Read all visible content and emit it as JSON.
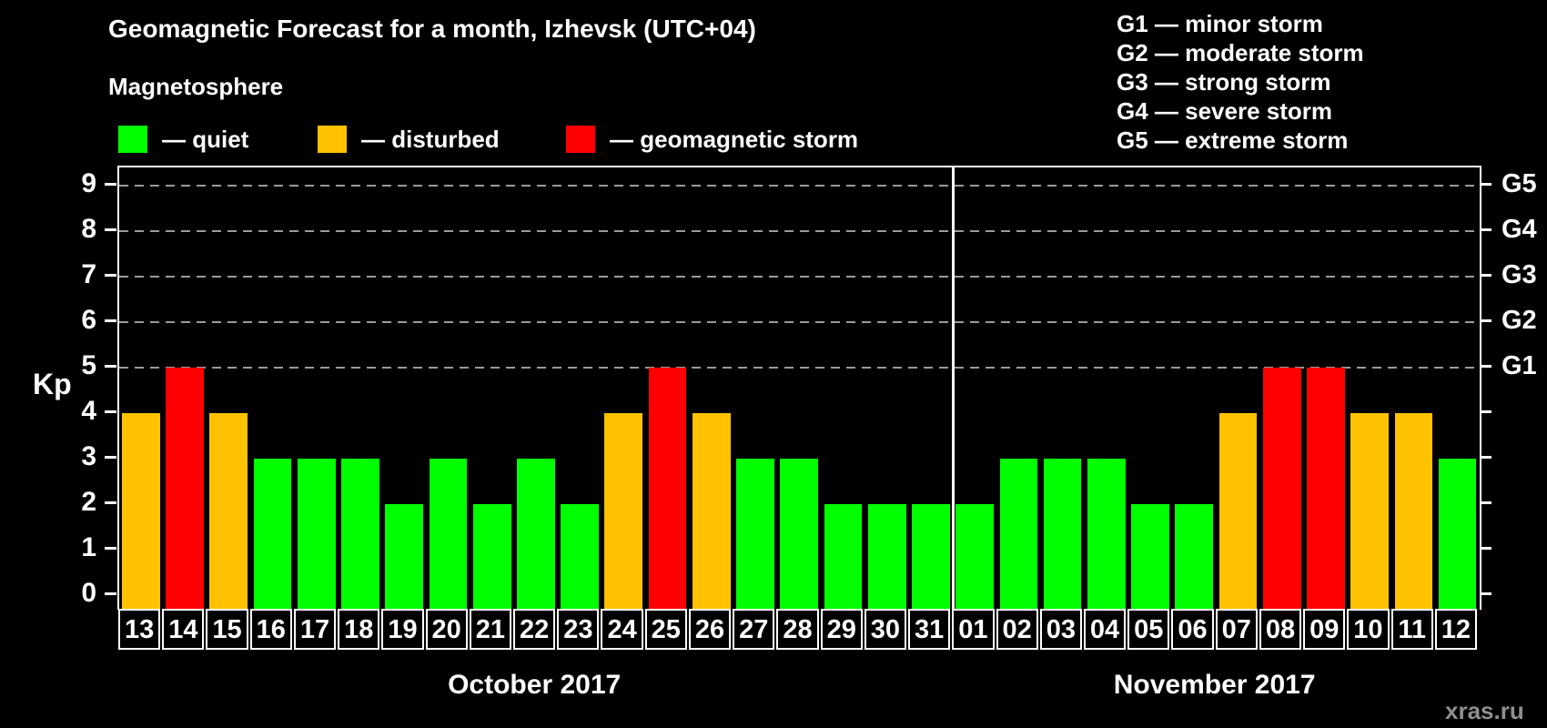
{
  "header": {
    "title": "Geomagnetic Forecast for a month, Izhevsk (UTC+04)",
    "subtitle": "Magnetosphere"
  },
  "legend": {
    "items": [
      {
        "name": "quiet",
        "label": "— quiet",
        "color": "#00ff00"
      },
      {
        "name": "disturbed",
        "label": "— disturbed",
        "color": "#ffc200"
      },
      {
        "name": "storm",
        "label": "— geomagnetic storm",
        "color": "#ff0000"
      }
    ]
  },
  "storm_scale_legend": {
    "items": [
      "G1 — minor storm",
      "G2 — moderate storm",
      "G3 — strong storm",
      "G4 — severe storm",
      "G5 — extreme storm"
    ]
  },
  "chart_data": {
    "type": "bar",
    "ylabel": "Kp",
    "ylim": [
      0,
      9
    ],
    "yticks": [
      0,
      1,
      2,
      3,
      4,
      5,
      6,
      7,
      8,
      9
    ],
    "gridlines_at": [
      5,
      6,
      7,
      8,
      9
    ],
    "grid_style": "dashed",
    "legend_position": "top",
    "right_axis_labels": [
      {
        "value": 5,
        "label": "G1"
      },
      {
        "value": 6,
        "label": "G2"
      },
      {
        "value": 7,
        "label": "G3"
      },
      {
        "value": 8,
        "label": "G4"
      },
      {
        "value": 9,
        "label": "G5"
      }
    ],
    "months": [
      {
        "label": "October 2017",
        "days": 19
      },
      {
        "label": "November 2017",
        "days": 12
      }
    ],
    "categories": [
      "13",
      "14",
      "15",
      "16",
      "17",
      "18",
      "19",
      "20",
      "21",
      "22",
      "23",
      "24",
      "25",
      "26",
      "27",
      "28",
      "29",
      "30",
      "31",
      "01",
      "02",
      "03",
      "04",
      "05",
      "06",
      "07",
      "08",
      "09",
      "10",
      "11",
      "12"
    ],
    "values": [
      4,
      5,
      4,
      3,
      3,
      3,
      2,
      3,
      2,
      3,
      2,
      4,
      5,
      4,
      3,
      3,
      2,
      2,
      2,
      2,
      3,
      3,
      3,
      2,
      2,
      4,
      5,
      5,
      4,
      4,
      3
    ],
    "statuses": [
      "disturbed",
      "storm",
      "disturbed",
      "quiet",
      "quiet",
      "quiet",
      "quiet",
      "quiet",
      "quiet",
      "quiet",
      "quiet",
      "disturbed",
      "storm",
      "disturbed",
      "quiet",
      "quiet",
      "quiet",
      "quiet",
      "quiet",
      "quiet",
      "quiet",
      "quiet",
      "quiet",
      "quiet",
      "quiet",
      "disturbed",
      "storm",
      "storm",
      "disturbed",
      "disturbed",
      "quiet"
    ],
    "colors": {
      "quiet": "#00ff00",
      "disturbed": "#ffc200",
      "storm": "#ff0000"
    }
  },
  "watermark": "xras.ru"
}
